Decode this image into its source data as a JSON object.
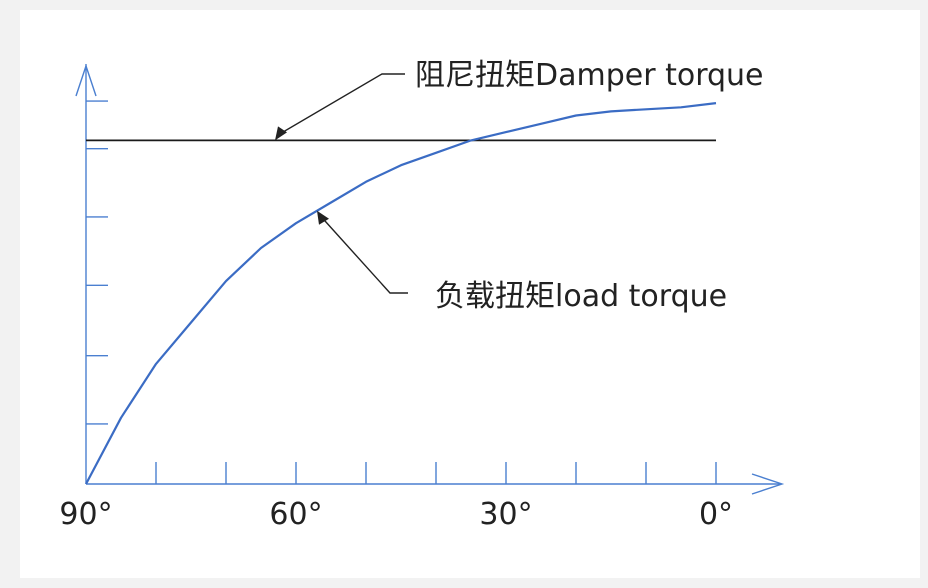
{
  "chart_data": {
    "type": "line",
    "title": "",
    "xlabel": "",
    "ylabel": "",
    "x_tick_labels": [
      "90°",
      "60°",
      "30°",
      "0°"
    ],
    "x_tick_values": [
      90,
      60,
      30,
      0
    ],
    "xlim": [
      90,
      0
    ],
    "ylim": [
      0,
      10
    ],
    "grid": false,
    "series": [
      {
        "name": "阻尼扭矩Damper torque",
        "color": "#1a1a1a",
        "x": [
          90,
          0
        ],
        "y": [
          8.3,
          8.3
        ]
      },
      {
        "name": "负载扭矩load torque",
        "color": "#3b6cc4",
        "x": [
          90,
          85,
          80,
          75,
          70,
          65,
          60,
          55,
          50,
          45,
          40,
          35,
          30,
          25,
          20,
          15,
          10,
          5,
          0
        ],
        "y": [
          0,
          1.6,
          2.9,
          3.9,
          4.9,
          5.7,
          6.3,
          6.8,
          7.3,
          7.7,
          8.0,
          8.3,
          8.5,
          8.7,
          8.9,
          9.0,
          9.05,
          9.1,
          9.2
        ]
      }
    ],
    "annotations": [
      {
        "text": "阻尼扭矩Damper torque",
        "series": 0,
        "at_x": 63
      },
      {
        "text": "负载扭矩load torque",
        "series": 1,
        "at_x": 57
      }
    ]
  }
}
